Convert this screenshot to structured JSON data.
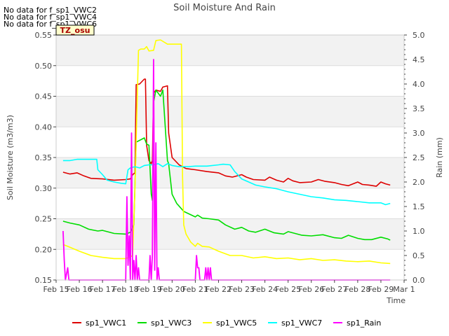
{
  "chart_data": {
    "type": "line",
    "title": "Soil Moisture And Rain",
    "xlabel": "Time",
    "ylabel": "Soil Moisture (m3/m3)",
    "y2label": "Rain (mm)",
    "x_ticks": [
      "Feb 15",
      "Feb 16",
      "Feb 17",
      "Feb 18",
      "Feb 19",
      "Feb 20",
      "Feb 21",
      "Feb 22",
      "Feb 23",
      "Feb 24",
      "Feb 25",
      "Feb 26",
      "Feb 27",
      "Feb 28",
      "Feb 29",
      "Mar 1"
    ],
    "xlim": [
      0,
      15
    ],
    "ylim": [
      0.15,
      0.55
    ],
    "y_ticks": [
      "0.15",
      "0.20",
      "0.25",
      "0.30",
      "0.35",
      "0.40",
      "0.45",
      "0.50",
      "0.55"
    ],
    "y2lim": [
      0,
      5
    ],
    "y2_ticks": [
      "0.0",
      "0.5",
      "1.0",
      "1.5",
      "2.0",
      "2.5",
      "3.0",
      "3.5",
      "4.0",
      "4.5",
      "5.0"
    ],
    "grid": true,
    "legend_position": "bottom",
    "no_data_messages": [
      "No data for f_sp1_VWC2",
      "No data for f_sp1_VWC4",
      "No data for f_sp1_VWC6"
    ],
    "timezone_badge": "TZ_osu",
    "series": [
      {
        "name": "sp1_VWC1",
        "color": "#dd0000",
        "axis": "left",
        "x": [
          0.3,
          0.6,
          0.9,
          1.2,
          1.5,
          2.0,
          2.5,
          3.0,
          3.2,
          3.3,
          3.4,
          3.45,
          3.6,
          3.8,
          3.85,
          3.9,
          4.0,
          4.1,
          4.15,
          4.2,
          4.3,
          4.5,
          4.6,
          4.8,
          4.85,
          5.0,
          5.3,
          5.6,
          6.0,
          6.5,
          7.0,
          7.3,
          7.6,
          8.0,
          8.2,
          8.5,
          9.0,
          9.2,
          9.5,
          9.8,
          10.0,
          10.2,
          10.5,
          11.0,
          11.3,
          11.6,
          12.0,
          12.3,
          12.6,
          13.0,
          13.2,
          13.5,
          13.8,
          14.0,
          14.2,
          14.4
        ],
        "y": [
          0.326,
          0.323,
          0.325,
          0.32,
          0.316,
          0.315,
          0.313,
          0.314,
          0.315,
          0.322,
          0.325,
          0.469,
          0.47,
          0.478,
          0.478,
          0.37,
          0.345,
          0.34,
          0.345,
          0.455,
          0.46,
          0.458,
          0.465,
          0.467,
          0.39,
          0.35,
          0.338,
          0.332,
          0.33,
          0.327,
          0.325,
          0.32,
          0.318,
          0.322,
          0.318,
          0.314,
          0.313,
          0.318,
          0.313,
          0.31,
          0.316,
          0.312,
          0.309,
          0.31,
          0.314,
          0.311,
          0.309,
          0.306,
          0.304,
          0.31,
          0.306,
          0.305,
          0.303,
          0.31,
          0.307,
          0.305
        ]
      },
      {
        "name": "sp1_VWC3",
        "color": "#00dd00",
        "axis": "left",
        "x": [
          0.3,
          0.6,
          1.0,
          1.4,
          1.8,
          2.0,
          2.5,
          3.0,
          3.2,
          3.35,
          3.45,
          3.6,
          3.8,
          3.9,
          4.0,
          4.1,
          4.15,
          4.2,
          4.3,
          4.5,
          4.6,
          4.8,
          4.85,
          5.0,
          5.2,
          5.5,
          6.0,
          6.1,
          6.3,
          6.6,
          7.0,
          7.3,
          7.7,
          8.0,
          8.3,
          8.6,
          9.0,
          9.4,
          9.8,
          10.0,
          10.3,
          10.6,
          11.0,
          11.5,
          12.0,
          12.3,
          12.6,
          13.0,
          13.3,
          13.6,
          14.0,
          14.3,
          14.4
        ],
        "y": [
          0.246,
          0.243,
          0.24,
          0.233,
          0.23,
          0.231,
          0.226,
          0.225,
          0.228,
          0.24,
          0.375,
          0.378,
          0.382,
          0.372,
          0.37,
          0.29,
          0.28,
          0.44,
          0.46,
          0.45,
          0.46,
          0.345,
          0.34,
          0.29,
          0.275,
          0.262,
          0.253,
          0.256,
          0.251,
          0.25,
          0.248,
          0.24,
          0.233,
          0.236,
          0.23,
          0.228,
          0.233,
          0.227,
          0.225,
          0.229,
          0.226,
          0.223,
          0.222,
          0.224,
          0.219,
          0.218,
          0.223,
          0.218,
          0.216,
          0.216,
          0.22,
          0.217,
          0.215
        ]
      },
      {
        "name": "sp1_VWC5",
        "color": "#ffff00",
        "axis": "left",
        "x": [
          0.3,
          0.5,
          1.0,
          1.5,
          2.0,
          2.5,
          3.0,
          3.2,
          3.3,
          3.4,
          3.5,
          3.55,
          3.65,
          3.8,
          3.9,
          4.0,
          4.2,
          4.3,
          4.5,
          4.8,
          5.0,
          5.3,
          5.4,
          5.45,
          5.5,
          5.6,
          5.8,
          6.0,
          6.1,
          6.3,
          6.6,
          7.0,
          7.5,
          8.0,
          8.5,
          9.0,
          9.5,
          10.0,
          10.5,
          11.0,
          11.5,
          12.0,
          12.5,
          13.0,
          13.5,
          14.0,
          14.4
        ],
        "y": [
          0.208,
          0.205,
          0.197,
          0.19,
          0.187,
          0.185,
          0.185,
          0.188,
          0.19,
          0.3,
          0.45,
          0.525,
          0.527,
          0.527,
          0.531,
          0.524,
          0.525,
          0.541,
          0.542,
          0.535,
          0.535,
          0.535,
          0.535,
          0.32,
          0.24,
          0.225,
          0.212,
          0.205,
          0.21,
          0.205,
          0.204,
          0.197,
          0.19,
          0.19,
          0.186,
          0.188,
          0.185,
          0.186,
          0.183,
          0.185,
          0.182,
          0.183,
          0.181,
          0.18,
          0.181,
          0.178,
          0.177
        ]
      },
      {
        "name": "sp1_VWC7",
        "color": "#00ffff",
        "axis": "left",
        "x": [
          0.3,
          0.6,
          0.9,
          1.2,
          1.5,
          1.75,
          1.8,
          2.0,
          2.2,
          2.5,
          2.8,
          3.0,
          3.1,
          3.2,
          3.4,
          3.6,
          3.8,
          4.0,
          4.2,
          4.4,
          4.6,
          4.8,
          5.0,
          5.3,
          5.7,
          6.0,
          6.5,
          7.0,
          7.2,
          7.5,
          7.7,
          8.0,
          8.3,
          8.6,
          9.0,
          9.5,
          10.0,
          10.5,
          11.0,
          11.5,
          12.0,
          12.5,
          13.0,
          13.5,
          14.0,
          14.2,
          14.4
        ],
        "y": [
          0.345,
          0.345,
          0.347,
          0.347,
          0.347,
          0.347,
          0.33,
          0.322,
          0.313,
          0.31,
          0.308,
          0.307,
          0.33,
          0.333,
          0.335,
          0.333,
          0.337,
          0.338,
          0.338,
          0.34,
          0.335,
          0.34,
          0.337,
          0.335,
          0.335,
          0.336,
          0.336,
          0.338,
          0.339,
          0.338,
          0.327,
          0.315,
          0.31,
          0.305,
          0.302,
          0.299,
          0.294,
          0.29,
          0.286,
          0.284,
          0.281,
          0.28,
          0.278,
          0.276,
          0.276,
          0.273,
          0.275
        ]
      },
      {
        "name": "sp1_Rain",
        "color": "#ff00ff",
        "axis": "right",
        "x": [
          0.3,
          0.35,
          0.4,
          0.5,
          0.55,
          0.6,
          3.0,
          3.05,
          3.1,
          3.15,
          3.2,
          3.25,
          3.3,
          3.35,
          3.4,
          3.45,
          3.5,
          3.55,
          3.6,
          3.65,
          3.7,
          4.0,
          4.05,
          4.1,
          4.15,
          4.2,
          4.25,
          4.3,
          4.35,
          4.4,
          4.45,
          4.5,
          4.55,
          4.6,
          6.0,
          6.05,
          6.1,
          6.15,
          6.2,
          6.4,
          6.45,
          6.5,
          6.55,
          6.6,
          6.65,
          6.7,
          14.4
        ],
        "y": [
          1.0,
          0.4,
          0,
          0.25,
          0,
          0,
          0,
          1.7,
          0.3,
          0.9,
          0,
          3.0,
          0,
          0.4,
          0,
          0.5,
          0,
          0.25,
          0,
          0,
          0,
          0,
          0.5,
          0,
          0.5,
          4.5,
          0.2,
          2.8,
          0,
          0.25,
          0,
          0,
          0,
          0,
          0,
          0.5,
          0.25,
          0.25,
          0,
          0,
          0.25,
          0,
          0.25,
          0,
          0.25,
          0,
          0
        ]
      }
    ]
  }
}
